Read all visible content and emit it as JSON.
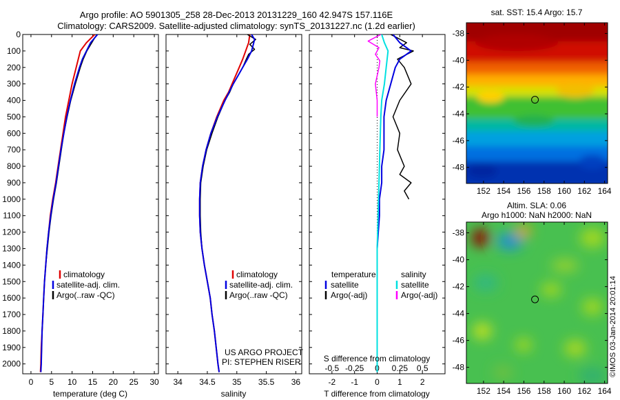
{
  "header": {
    "title_line1": "Argo profile: AO 5901305_258 28-Dec-2013 20131229_160 42.947S 157.116E",
    "title_line2": "Climatology: CARS2009. Satellite-adjusted climatology: synTS_20131227.nc (1.2d earlier)"
  },
  "colors": {
    "climatology": "#e00000",
    "satellite": "#0000e0",
    "argo": "#000000",
    "sal_satellite": "#00e0e0",
    "sal_argo": "#ff00ff"
  },
  "chart_data": [
    {
      "type": "line",
      "panel": "temperature",
      "xlabel": "temperature (deg C)",
      "xlim": [
        -2,
        31
      ],
      "ylim": [
        0,
        2060
      ],
      "y_reversed": true,
      "xticks": [
        0,
        5,
        10,
        15,
        20,
        25,
        30
      ],
      "yticks": [
        0,
        100,
        200,
        300,
        400,
        500,
        600,
        700,
        800,
        900,
        1000,
        1100,
        1200,
        1300,
        1400,
        1500,
        1600,
        1700,
        1800,
        1900,
        2000
      ],
      "legend": [
        "climatology",
        "satellite-adj. clim.",
        "Argo(..raw -QC)"
      ],
      "series": [
        {
          "name": "climatology",
          "depth": [
            0,
            50,
            100,
            150,
            200,
            300,
            400,
            500,
            600,
            700,
            800,
            900,
            1000,
            1100,
            1200,
            1300,
            1400,
            1500,
            1600,
            1700,
            1800,
            1900,
            2000,
            2050
          ],
          "values": [
            15.5,
            13.5,
            12.0,
            11.5,
            11.0,
            10.0,
            9.2,
            8.4,
            7.8,
            7.2,
            6.6,
            6.0,
            5.3,
            4.7,
            4.3,
            3.9,
            3.6,
            3.3,
            3.1,
            2.9,
            2.7,
            2.5,
            2.4,
            2.3
          ]
        },
        {
          "name": "satellite-adj. clim.",
          "depth": [
            0,
            50,
            100,
            150,
            200,
            300,
            400,
            500,
            600,
            700,
            800,
            900,
            1000,
            1100,
            1200,
            1300,
            1400,
            1500,
            1600,
            1700,
            1800,
            1900,
            2000,
            2050
          ],
          "values": [
            16.2,
            14.5,
            13.5,
            12.5,
            11.8,
            10.6,
            9.6,
            8.7,
            8.0,
            7.3,
            6.7,
            6.1,
            5.4,
            4.8,
            4.3,
            3.9,
            3.6,
            3.3,
            3.1,
            2.9,
            2.7,
            2.6,
            2.5,
            2.4
          ]
        },
        {
          "name": "Argo(..raw -QC)",
          "depth": [
            0,
            50,
            100,
            150,
            200,
            300,
            400,
            500,
            600,
            700,
            800,
            900,
            1000,
            1100,
            1200,
            1300,
            1400,
            1500,
            1600,
            1700,
            1800,
            1900,
            2000,
            2050
          ],
          "values": [
            16.0,
            14.8,
            13.6,
            12.7,
            12.0,
            10.8,
            9.7,
            8.8,
            8.0,
            7.4,
            6.8,
            6.2,
            5.5,
            4.9,
            4.4,
            4.0,
            3.6,
            3.3,
            3.1,
            2.9,
            2.7,
            2.6,
            2.5,
            2.4
          ]
        }
      ]
    },
    {
      "type": "line",
      "panel": "salinity",
      "xlabel": "salinity",
      "xlim": [
        33.8,
        36.1
      ],
      "ylim": [
        0,
        2060
      ],
      "y_reversed": true,
      "xticks": [
        34,
        34.5,
        35,
        35.5,
        36
      ],
      "legend": [
        "climatology",
        "satellite-adj. clim.",
        "Argo(..raw -QC)"
      ],
      "annotations": [
        "US ARGO PROJECT",
        "PI: STEPHEN RISER"
      ],
      "series": [
        {
          "name": "climatology",
          "depth": [
            0,
            50,
            100,
            150,
            200,
            250,
            300,
            350,
            400,
            500,
            600,
            700,
            800,
            900,
            1000,
            1100,
            1200,
            1300,
            1400,
            1500,
            1600,
            1700,
            1800,
            1900,
            2000,
            2050
          ],
          "values": [
            35.22,
            35.2,
            35.15,
            35.1,
            35.04,
            34.98,
            34.92,
            34.86,
            34.78,
            34.66,
            34.56,
            34.48,
            34.42,
            34.38,
            34.37,
            34.37,
            34.38,
            34.41,
            34.45,
            34.5,
            34.55,
            34.58,
            34.62,
            34.65,
            34.68,
            34.7
          ]
        },
        {
          "name": "satellite-adj. clim.",
          "depth": [
            0,
            30,
            60,
            100,
            150,
            200,
            250,
            300,
            350,
            400,
            500,
            600,
            700,
            800,
            900,
            1000,
            1100,
            1200,
            1300,
            1400,
            1500,
            1600,
            1700,
            1800,
            1900,
            2000,
            2050
          ],
          "values": [
            35.25,
            35.3,
            35.28,
            35.25,
            35.18,
            35.1,
            35.02,
            34.94,
            34.87,
            34.8,
            34.67,
            34.56,
            34.48,
            34.42,
            34.38,
            34.37,
            34.37,
            34.38,
            34.41,
            34.45,
            34.5,
            34.55,
            34.58,
            34.62,
            34.65,
            34.68,
            34.7
          ]
        },
        {
          "name": "Argo(..raw -QC)",
          "depth": [
            0,
            30,
            60,
            90,
            120,
            150,
            200,
            250,
            300,
            350,
            400,
            500,
            600,
            700,
            800,
            900,
            1000,
            1100,
            1200,
            1300,
            1400,
            1500,
            1600,
            1700,
            1800,
            1900,
            2000,
            2050
          ],
          "values": [
            35.18,
            35.32,
            35.22,
            35.3,
            35.2,
            35.16,
            35.1,
            35.02,
            34.94,
            34.88,
            34.8,
            34.68,
            34.58,
            34.49,
            34.43,
            34.39,
            34.38,
            34.38,
            34.39,
            34.41,
            34.45,
            34.5,
            34.55,
            34.58,
            34.62,
            34.65,
            34.68,
            34.7
          ]
        }
      ]
    },
    {
      "type": "line",
      "panel": "differences",
      "xlabel": "T difference from climatology",
      "xlabel_top": "S difference from climatology",
      "xlim": [
        -3,
        3
      ],
      "ylim": [
        0,
        2060
      ],
      "y_reversed": true,
      "xticks": [
        -2,
        -1,
        0,
        1,
        2
      ],
      "xticks_top": [
        "-0.5",
        "-0.25",
        "0",
        "0.25",
        "0.5"
      ],
      "legend_temperature_title": "temperature",
      "legend_salinity_title": "salinity",
      "legend": [
        "satellite",
        "Argo(-adj)",
        "satellite",
        "Argo(-adj)"
      ],
      "series": [
        {
          "name": "temperature satellite",
          "depth": [
            0,
            50,
            100,
            150,
            200,
            300,
            400,
            500,
            600,
            700,
            800,
            900,
            1000,
            1100,
            1200,
            1300,
            1500,
            1700,
            2000,
            2050
          ],
          "values": [
            0.7,
            1.0,
            1.5,
            1.0,
            0.8,
            0.6,
            0.4,
            0.3,
            0.3,
            0.3,
            0.2,
            0.2,
            0.1,
            0.1,
            0.05,
            0.0,
            0.0,
            0.0,
            0.0,
            0.0
          ]
        },
        {
          "name": "temperature Argo(-adj)",
          "depth": [
            0,
            50,
            80,
            100,
            150,
            200,
            300,
            400,
            500,
            600,
            700,
            800,
            850,
            900,
            950,
            1000
          ],
          "values": [
            0.6,
            1.3,
            1.0,
            1.6,
            0.9,
            1.2,
            1.5,
            1.0,
            0.7,
            1.0,
            0.9,
            1.2,
            1.0,
            1.5,
            1.2,
            1.4
          ]
        },
        {
          "name": "salinity satellite",
          "depth": [
            0,
            50,
            100,
            200,
            300,
            400,
            500,
            700,
            900,
            1100,
            1300,
            1500,
            1800,
            2050
          ],
          "values": [
            0.05,
            0.08,
            0.12,
            0.1,
            0.08,
            0.05,
            0.04,
            0.03,
            0.02,
            0.01,
            0.0,
            0.0,
            0.0,
            0.0
          ]
        },
        {
          "name": "salinity Argo(-adj)",
          "depth": [
            0,
            40,
            80,
            120,
            160,
            200,
            300,
            400,
            500
          ],
          "values": [
            0.04,
            -0.1,
            0.02,
            -0.02,
            0.03,
            0.02,
            -0.02,
            0.0,
            0.0
          ]
        }
      ]
    },
    {
      "type": "heatmap",
      "panel": "sst_map",
      "title": "sat. SST: 15.4  Argo: 15.7",
      "xlim": [
        150.3,
        164.3
      ],
      "ylim": [
        -49.2,
        -37.2
      ],
      "xticks": [
        152,
        154,
        156,
        158,
        160,
        162,
        164
      ],
      "yticks": [
        -38,
        -40,
        -42,
        -44,
        -46,
        -48
      ],
      "marker": {
        "lon": 157.1,
        "lat": -42.95
      }
    },
    {
      "type": "heatmap",
      "panel": "sla_map",
      "title_line1": "Altim. SLA: 0.06",
      "title_line2": "Argo h1000: NaN h2000: NaN",
      "xlim": [
        150.3,
        164.3
      ],
      "ylim": [
        -49.2,
        -37.2
      ],
      "xticks": [
        152,
        154,
        156,
        158,
        160,
        162,
        164
      ],
      "yticks": [
        -38,
        -40,
        -42,
        -44,
        -46,
        -48
      ],
      "marker": {
        "lon": 157.1,
        "lat": -42.95
      },
      "stamp": "©IMOS 03-Jan-2014 20:01:14"
    }
  ]
}
